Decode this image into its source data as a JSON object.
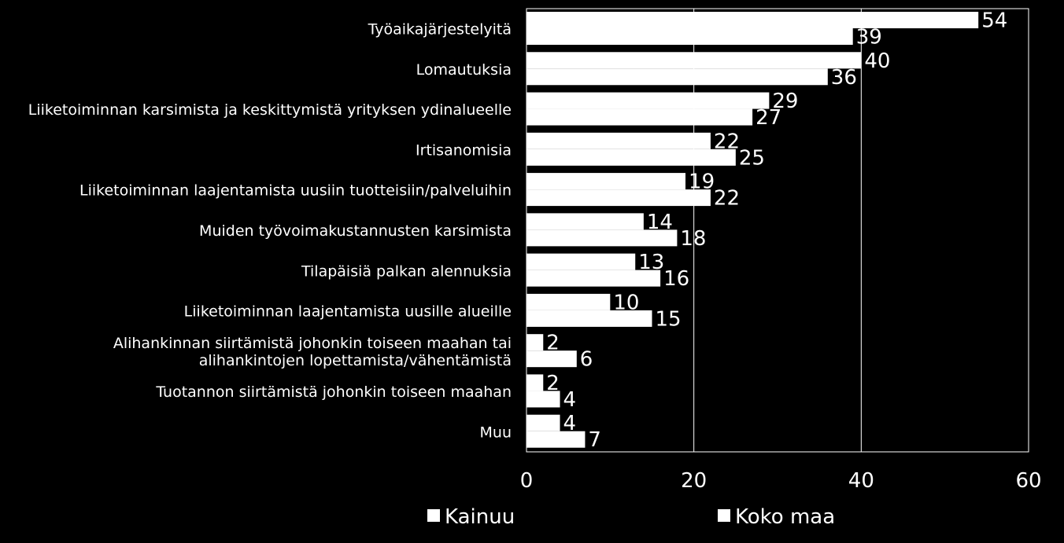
{
  "chart_data": {
    "type": "bar",
    "orientation": "horizontal",
    "categories": [
      [
        "Työaikajärjestelyitä"
      ],
      [
        "Lomautuksia"
      ],
      [
        "Liiketoiminnan karsimista ja keskittymistä yrityksen ydinalueelle"
      ],
      [
        "Irtisanomisia"
      ],
      [
        "Liiketoiminnan laajentamista uusiin tuotteisiin/palveluihin"
      ],
      [
        "Muiden työvoimakustannusten karsimista"
      ],
      [
        "Tilapäisiä palkan alennuksia"
      ],
      [
        "Liiketoiminnan laajentamista uusille alueille"
      ],
      [
        "Alihankinnan siirtämistä johonkin toiseen maahan tai",
        "alihankintojen lopettamista/vähentämistä"
      ],
      [
        "Tuotannon siirtämistä johonkin toiseen maahan"
      ],
      [
        "Muu"
      ]
    ],
    "series": [
      {
        "name": "Kainuu",
        "values": [
          54,
          40,
          29,
          22,
          19,
          14,
          13,
          10,
          2,
          2,
          4
        ],
        "color": "#ffffff"
      },
      {
        "name": "Koko maa",
        "values": [
          39,
          36,
          27,
          25,
          22,
          18,
          16,
          15,
          6,
          4,
          7
        ],
        "color": "#ffffff"
      }
    ],
    "xlim": [
      0,
      60
    ],
    "xticks": [
      0,
      20,
      40,
      60
    ],
    "grid": "vertical",
    "legend": "bottom",
    "background": "#000000",
    "title": "",
    "xlabel": "",
    "ylabel": ""
  }
}
